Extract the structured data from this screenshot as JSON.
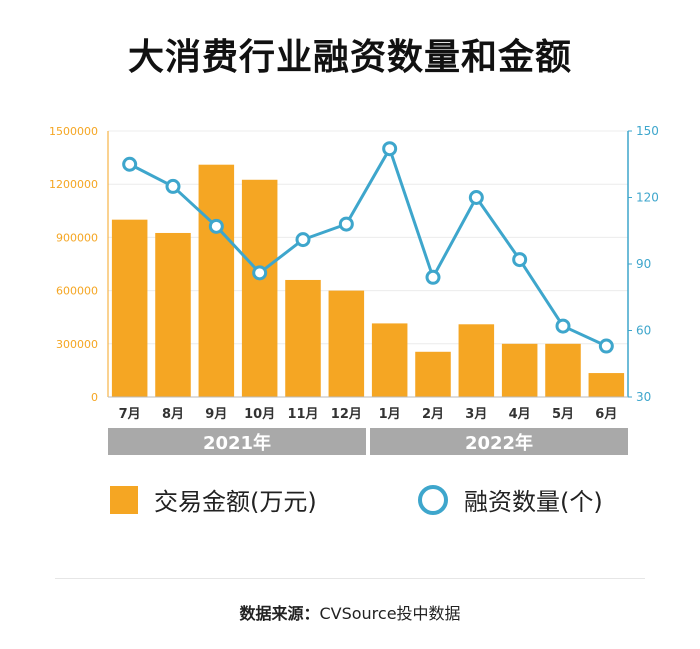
{
  "title": "大消费行业融资数量和金额",
  "chart_data": {
    "type": "bar+line",
    "categories": [
      "7月",
      "8月",
      "9月",
      "10月",
      "11月",
      "12月",
      "1月",
      "2月",
      "3月",
      "4月",
      "5月",
      "6月"
    ],
    "years": [
      {
        "label": "2021年",
        "months": 6
      },
      {
        "label": "2022年",
        "months": 6
      }
    ],
    "series": [
      {
        "name": "交易金额(万元)",
        "type": "bar",
        "axis": "left",
        "color": "#f5a623",
        "values": [
          1000000,
          925000,
          1310000,
          1225000,
          660000,
          600000,
          415000,
          255000,
          410000,
          300000,
          300000,
          135000
        ]
      },
      {
        "name": "融资数量(个)",
        "type": "line",
        "axis": "right",
        "color": "#3ea6cc",
        "values": [
          135,
          125,
          107,
          86,
          101,
          108,
          142,
          84,
          120,
          92,
          62,
          53
        ]
      }
    ],
    "y_left": {
      "min": 0,
      "max": 1500000,
      "ticks": [
        "0",
        "300000",
        "600000",
        "900000",
        "1200000",
        "1500000"
      ],
      "color": "#f5a623"
    },
    "y_right": {
      "min": 30,
      "max": 150,
      "ticks": [
        "30",
        "60",
        "90",
        "120",
        "150"
      ],
      "color": "#3ea6cc"
    },
    "grid": true,
    "legend_position": "bottom"
  },
  "legend": {
    "bar_label": "交易金额(万元)",
    "line_label": "融资数量(个)"
  },
  "source": {
    "label": "数据来源：",
    "text": "CVSource投中数据"
  }
}
